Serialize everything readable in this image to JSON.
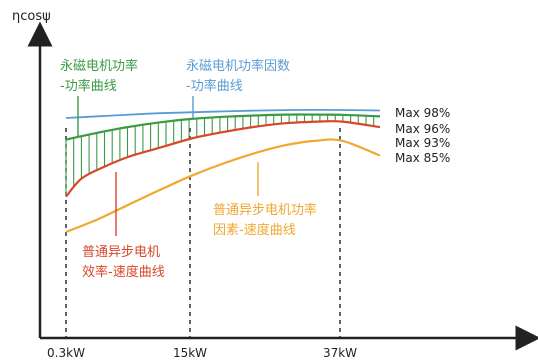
{
  "chart_data": {
    "type": "line",
    "ylabel": "ηcosψ",
    "x_ticks": [
      "0.3kW",
      "15kW",
      "37kW"
    ],
    "series": [
      {
        "name": "永磁电机功率因数-功率曲线",
        "color": "#5b9bd5",
        "max_label": "Max 98%",
        "points": [
          [
            0.0,
            94.5
          ],
          [
            0.15,
            95.6
          ],
          [
            0.3,
            96.6
          ],
          [
            0.5,
            97.4
          ],
          [
            0.72,
            98.0
          ],
          [
            0.87,
            98.0
          ],
          [
            1.0,
            97.8
          ]
        ]
      },
      {
        "name": "永磁电机功率-功率曲线",
        "color": "#3a9a45",
        "max_label": "Max 96%",
        "points": [
          [
            0.0,
            85.0
          ],
          [
            0.1,
            88.0
          ],
          [
            0.2,
            90.6
          ],
          [
            0.3,
            92.6
          ],
          [
            0.4,
            94.1
          ],
          [
            0.5,
            95.0
          ],
          [
            0.6,
            95.6
          ],
          [
            0.7,
            96.0
          ],
          [
            0.8,
            96.0
          ],
          [
            0.88,
            95.9
          ],
          [
            1.0,
            95.2
          ]
        ]
      },
      {
        "name": "普通异步电机效率-速度曲线",
        "color": "#d9472b",
        "max_label": "Max 93%",
        "points": [
          [
            0.0,
            60.0
          ],
          [
            0.05,
            68.0
          ],
          [
            0.12,
            73.0
          ],
          [
            0.2,
            77.5
          ],
          [
            0.3,
            81.5
          ],
          [
            0.4,
            85.5
          ],
          [
            0.5,
            88.3
          ],
          [
            0.6,
            90.6
          ],
          [
            0.7,
            92.2
          ],
          [
            0.8,
            92.9
          ],
          [
            0.88,
            92.9
          ],
          [
            1.0,
            90.5
          ]
        ]
      },
      {
        "name": "普通异步电机功率因素-速度曲线",
        "color": "#f0a830",
        "max_label": "Max 85%",
        "points": [
          [
            0.0,
            44.5
          ],
          [
            0.1,
            50.0
          ],
          [
            0.2,
            56.5
          ],
          [
            0.3,
            63.0
          ],
          [
            0.4,
            69.2
          ],
          [
            0.5,
            74.5
          ],
          [
            0.6,
            79.0
          ],
          [
            0.7,
            82.6
          ],
          [
            0.8,
            84.6
          ],
          [
            0.88,
            84.5
          ],
          [
            1.0,
            78.0
          ]
        ]
      }
    ],
    "annotations": [
      {
        "lines": [
          "永磁电机功率",
          "-功率曲线"
        ],
        "color": "#3a9a45"
      },
      {
        "lines": [
          "永磁电机功率因数",
          "-功率曲线"
        ],
        "color": "#5b9bd5"
      },
      {
        "lines": [
          "普通异步电机",
          "效率-速度曲线"
        ],
        "color": "#d9472b"
      },
      {
        "lines": [
          "普通异步电机功率",
          "因素-速度曲线"
        ],
        "color": "#f0a830"
      }
    ],
    "max_labels": [
      "Max 98%",
      "Max 96%",
      "Max 93%",
      "Max 85%"
    ],
    "grid": false
  }
}
